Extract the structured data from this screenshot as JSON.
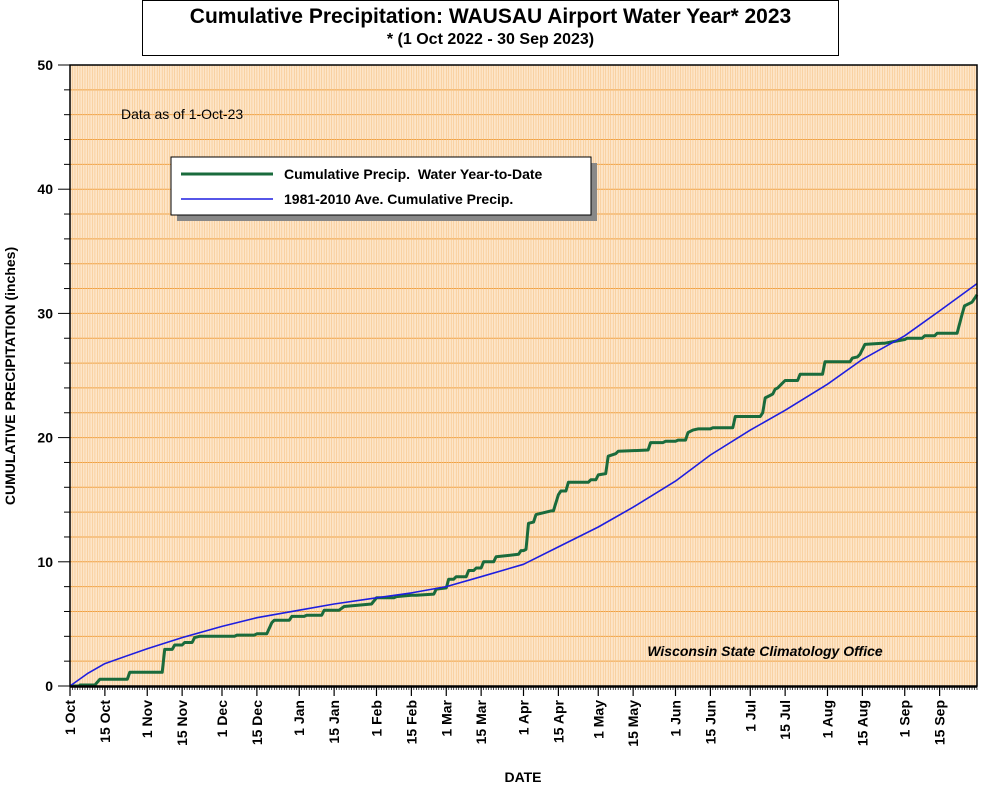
{
  "chart_data": {
    "type": "line",
    "title": "Cumulative Precipitation: WAUSAU Airport Water Year* 2023",
    "subtitle": "* (1 Oct 2022 - 30 Sep 2023)",
    "xlabel": "DATE",
    "ylabel": "CUMULATIVE PRECIPITATION (inches)",
    "ylim": [
      0,
      50
    ],
    "xlim": [
      "2022-10-01",
      "2023-09-30"
    ],
    "yticks": [
      "0",
      "10",
      "20",
      "30",
      "40",
      "50"
    ],
    "xticks": [
      {
        "date": "2022-10-01",
        "label": "1 Oct"
      },
      {
        "date": "2022-10-15",
        "label": "15 Oct"
      },
      {
        "date": "2022-11-01",
        "label": "1 Nov"
      },
      {
        "date": "2022-11-15",
        "label": "15 Nov"
      },
      {
        "date": "2022-12-01",
        "label": "1 Dec"
      },
      {
        "date": "2022-12-15",
        "label": "15 Dec"
      },
      {
        "date": "2023-01-01",
        "label": "1 Jan"
      },
      {
        "date": "2023-01-15",
        "label": "15 Jan"
      },
      {
        "date": "2023-02-01",
        "label": "1 Feb"
      },
      {
        "date": "2023-02-15",
        "label": "15 Feb"
      },
      {
        "date": "2023-03-01",
        "label": "1 Mar"
      },
      {
        "date": "2023-03-15",
        "label": "15 Mar"
      },
      {
        "date": "2023-04-01",
        "label": "1 Apr"
      },
      {
        "date": "2023-04-15",
        "label": "15 Apr"
      },
      {
        "date": "2023-05-01",
        "label": "1 May"
      },
      {
        "date": "2023-05-15",
        "label": "15 May"
      },
      {
        "date": "2023-06-01",
        "label": "1 Jun"
      },
      {
        "date": "2023-06-15",
        "label": "15 Jun"
      },
      {
        "date": "2023-07-01",
        "label": "1 Jul"
      },
      {
        "date": "2023-07-15",
        "label": "15 Jul"
      },
      {
        "date": "2023-08-01",
        "label": "1 Aug"
      },
      {
        "date": "2023-08-15",
        "label": "15 Aug"
      },
      {
        "date": "2023-09-01",
        "label": "1 Sep"
      },
      {
        "date": "2023-09-15",
        "label": "15 Sep"
      }
    ],
    "grid": true,
    "legend_position": "top-left",
    "annotations": {
      "data_as_of": "Data as of 1-Oct-23",
      "source": "Wisconsin State Climatology Office"
    },
    "series": [
      {
        "name": "Cumulative Precip.  Water Year-to-Date",
        "color": "#1a6b3c",
        "x": [
          "2022-10-01",
          "2022-10-05",
          "2022-10-05",
          "2022-10-11",
          "2022-10-13",
          "2022-10-24",
          "2022-10-25",
          "2022-11-07",
          "2022-11-08",
          "2022-11-11",
          "2022-11-12",
          "2022-11-15",
          "2022-11-16",
          "2022-11-19",
          "2022-11-20",
          "2022-11-22",
          "2022-12-06",
          "2022-12-07",
          "2022-12-14",
          "2022-12-15",
          "2022-12-19",
          "2022-12-21",
          "2022-12-22",
          "2022-12-28",
          "2022-12-29",
          "2023-01-03",
          "2023-01-04",
          "2023-01-10",
          "2023-01-11",
          "2023-01-17",
          "2023-01-19",
          "2023-01-30",
          "2023-02-01",
          "2023-02-08",
          "2023-02-09",
          "2023-02-15",
          "2023-02-17",
          "2023-02-24",
          "2023-02-25",
          "2023-03-01",
          "2023-03-02",
          "2023-03-04",
          "2023-03-05",
          "2023-03-09",
          "2023-03-10",
          "2023-03-12",
          "2023-03-13",
          "2023-03-15",
          "2023-03-16",
          "2023-03-20",
          "2023-03-21",
          "2023-03-30",
          "2023-03-31",
          "2023-04-01",
          "2023-04-02",
          "2023-04-03",
          "2023-04-05",
          "2023-04-06",
          "2023-04-12",
          "2023-04-13",
          "2023-04-15",
          "2023-04-16",
          "2023-04-18",
          "2023-04-19",
          "2023-04-27",
          "2023-04-28",
          "2023-04-30",
          "2023-05-01",
          "2023-05-04",
          "2023-05-05",
          "2023-05-08",
          "2023-05-09",
          "2023-05-21",
          "2023-05-22",
          "2023-05-27",
          "2023-05-28",
          "2023-06-01",
          "2023-06-02",
          "2023-06-05",
          "2023-06-06",
          "2023-06-08",
          "2023-06-10",
          "2023-06-15",
          "2023-06-16",
          "2023-06-24",
          "2023-06-25",
          "2023-06-29",
          "2023-07-04",
          "2023-07-05",
          "2023-07-06",
          "2023-07-07",
          "2023-07-09",
          "2023-07-10",
          "2023-07-11",
          "2023-07-12",
          "2023-07-15",
          "2023-07-16",
          "2023-07-20",
          "2023-07-21",
          "2023-07-30",
          "2023-07-31",
          "2023-08-10",
          "2023-08-11",
          "2023-08-13",
          "2023-08-14",
          "2023-08-15",
          "2023-08-16",
          "2023-08-23",
          "2023-08-24",
          "2023-09-01",
          "2023-09-02",
          "2023-09-08",
          "2023-09-09",
          "2023-09-13",
          "2023-09-14",
          "2023-09-20",
          "2023-09-22",
          "2023-09-24",
          "2023-09-25",
          "2023-09-28",
          "2023-09-30"
        ],
        "y": [
          0,
          0,
          0.08,
          0.08,
          0.55,
          0.55,
          1.1,
          1.1,
          2.95,
          2.95,
          3.3,
          3.3,
          3.5,
          3.5,
          3.9,
          4.0,
          4.0,
          4.1,
          4.1,
          4.2,
          4.2,
          5.1,
          5.3,
          5.3,
          5.6,
          5.6,
          5.7,
          5.7,
          6.1,
          6.1,
          6.4,
          6.6,
          7.1,
          7.1,
          7.2,
          7.3,
          7.3,
          7.4,
          7.8,
          7.9,
          8.6,
          8.6,
          8.8,
          8.8,
          9.3,
          9.3,
          9.5,
          9.5,
          10.0,
          10.0,
          10.4,
          10.6,
          10.9,
          10.9,
          11.0,
          13.1,
          13.2,
          13.8,
          14.1,
          14.1,
          15.4,
          15.7,
          15.7,
          16.4,
          16.4,
          16.6,
          16.6,
          17.0,
          17.1,
          18.5,
          18.7,
          18.9,
          19.0,
          19.6,
          19.6,
          19.7,
          19.7,
          19.8,
          19.8,
          20.4,
          20.6,
          20.7,
          20.7,
          20.8,
          20.8,
          21.7,
          21.7,
          21.7,
          21.7,
          22.0,
          23.2,
          23.4,
          23.5,
          23.9,
          24.0,
          24.6,
          24.6,
          24.6,
          25.1,
          25.1,
          26.1,
          26.1,
          26.4,
          26.5,
          26.7,
          27.1,
          27.5,
          27.6,
          27.6,
          27.9,
          28.0,
          28.0,
          28.2,
          28.2,
          28.4,
          28.4,
          28.4,
          29.9,
          30.6,
          30.9,
          31.5
        ]
      },
      {
        "name": "1981-2010 Ave. Cumulative Precip.",
        "color": "#1e1ee0",
        "x": [
          "2022-10-01",
          "2022-10-08",
          "2022-10-15",
          "2022-11-01",
          "2022-11-15",
          "2022-12-01",
          "2022-12-15",
          "2023-01-01",
          "2023-01-15",
          "2023-02-01",
          "2023-02-15",
          "2023-03-01",
          "2023-03-15",
          "2023-04-01",
          "2023-04-15",
          "2023-05-01",
          "2023-05-15",
          "2023-06-01",
          "2023-06-15",
          "2023-07-01",
          "2023-07-15",
          "2023-08-01",
          "2023-08-15",
          "2023-09-01",
          "2023-09-15",
          "2023-09-30"
        ],
        "y": [
          0,
          1.0,
          1.8,
          3.0,
          3.9,
          4.8,
          5.5,
          6.1,
          6.6,
          7.1,
          7.5,
          8.0,
          8.8,
          9.8,
          11.2,
          12.8,
          14.4,
          16.5,
          18.6,
          20.6,
          22.2,
          24.3,
          26.3,
          28.2,
          30.2,
          32.4
        ]
      }
    ]
  }
}
